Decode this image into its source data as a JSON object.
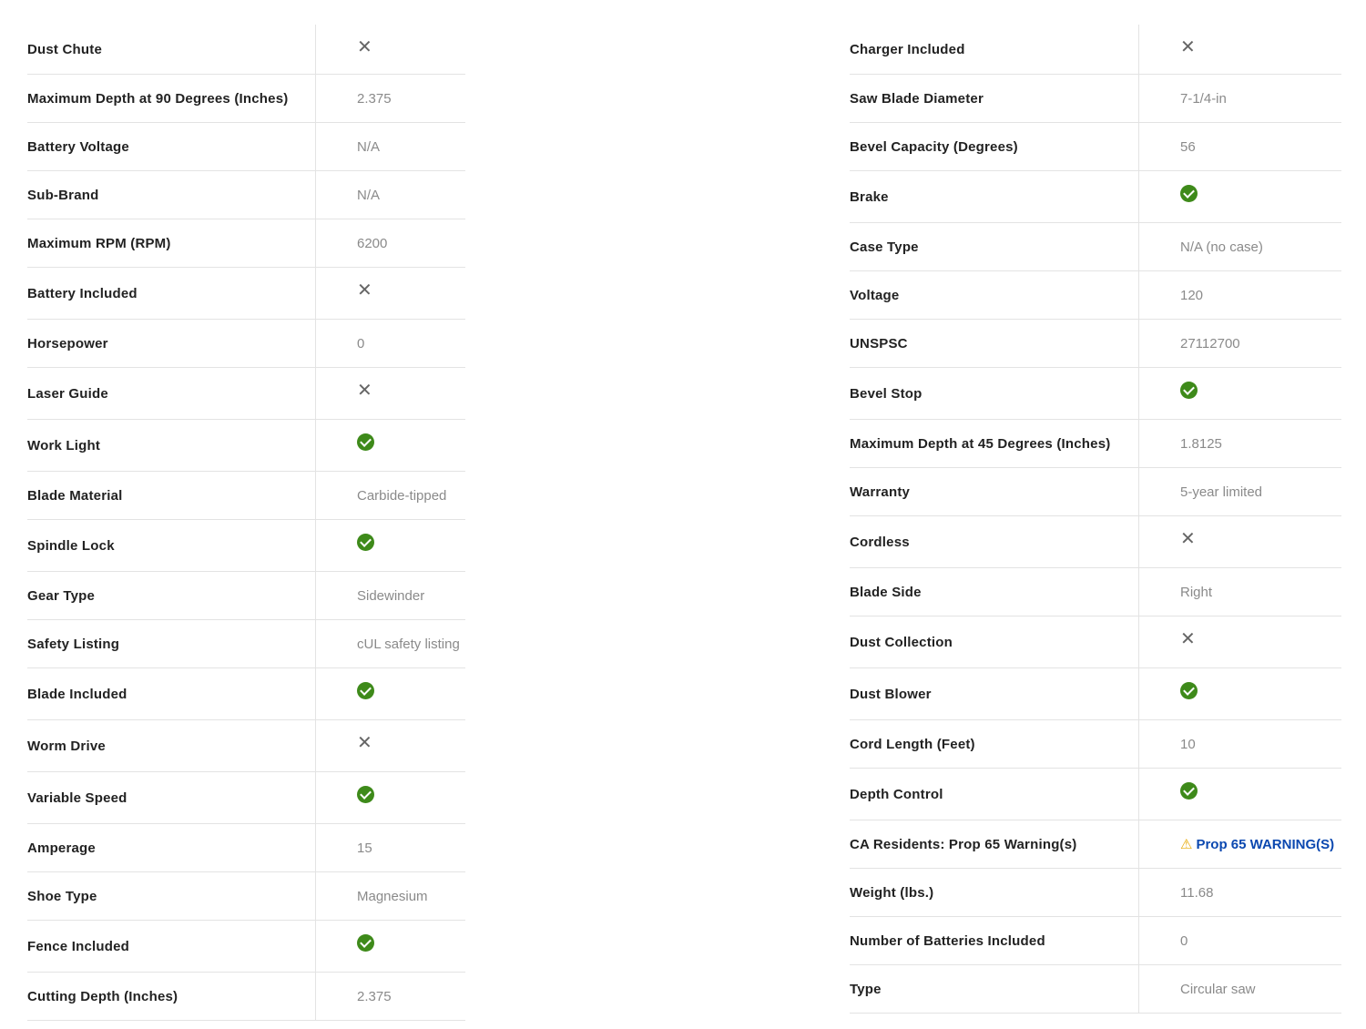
{
  "left": [
    {
      "label": "Dust Chute",
      "icon": "x"
    },
    {
      "label": "Maximum Depth at 90 Degrees (Inches)",
      "value": "2.375"
    },
    {
      "label": "Battery Voltage",
      "value": "N/A"
    },
    {
      "label": "Sub-Brand",
      "value": "N/A"
    },
    {
      "label": "Maximum RPM (RPM)",
      "value": "6200"
    },
    {
      "label": "Battery Included",
      "icon": "x"
    },
    {
      "label": "Horsepower",
      "value": "0"
    },
    {
      "label": "Laser Guide",
      "icon": "x"
    },
    {
      "label": "Work Light",
      "icon": "check"
    },
    {
      "label": "Blade Material",
      "value": "Carbide-tipped"
    },
    {
      "label": "Spindle Lock",
      "icon": "check"
    },
    {
      "label": "Gear Type",
      "value": "Sidewinder"
    },
    {
      "label": "Safety Listing",
      "value": "cUL safety listing"
    },
    {
      "label": "Blade Included",
      "icon": "check"
    },
    {
      "label": "Worm Drive",
      "icon": "x"
    },
    {
      "label": "Variable Speed",
      "icon": "check"
    },
    {
      "label": "Amperage",
      "value": "15"
    },
    {
      "label": "Shoe Type",
      "value": "Magnesium"
    },
    {
      "label": "Fence Included",
      "icon": "check"
    },
    {
      "label": "Cutting Depth (Inches)",
      "value": "2.375"
    }
  ],
  "right": [
    {
      "label": "Charger Included",
      "icon": "x"
    },
    {
      "label": "Saw Blade Diameter",
      "value": "7-1/4-in"
    },
    {
      "label": "Bevel Capacity (Degrees)",
      "value": "56"
    },
    {
      "label": "Brake",
      "icon": "check"
    },
    {
      "label": "Case Type",
      "value": "N/A (no case)"
    },
    {
      "label": "Voltage",
      "value": "120"
    },
    {
      "label": "UNSPSC",
      "value": "27112700"
    },
    {
      "label": "Bevel Stop",
      "icon": "check"
    },
    {
      "label": "Maximum Depth at 45 Degrees (Inches)",
      "value": "1.8125"
    },
    {
      "label": "Warranty",
      "value": "5-year limited"
    },
    {
      "label": "Cordless",
      "icon": "x"
    },
    {
      "label": "Blade Side",
      "value": "Right"
    },
    {
      "label": "Dust Collection",
      "icon": "x"
    },
    {
      "label": "Dust Blower",
      "icon": "check"
    },
    {
      "label": "Cord Length (Feet)",
      "value": "10"
    },
    {
      "label": "Depth Control",
      "icon": "check"
    },
    {
      "label": "CA Residents: Prop 65 Warning(s)",
      "link": "Prop 65 WARNING(S)",
      "icon": "warning"
    },
    {
      "label": "Weight (lbs.)",
      "value": "11.68"
    },
    {
      "label": "Number of Batteries Included",
      "value": "0"
    },
    {
      "label": "Type",
      "value": "Circular saw"
    }
  ],
  "colors": {
    "check": "#3e8a1a",
    "link": "#0b48b0",
    "warning": "#e8a800"
  }
}
